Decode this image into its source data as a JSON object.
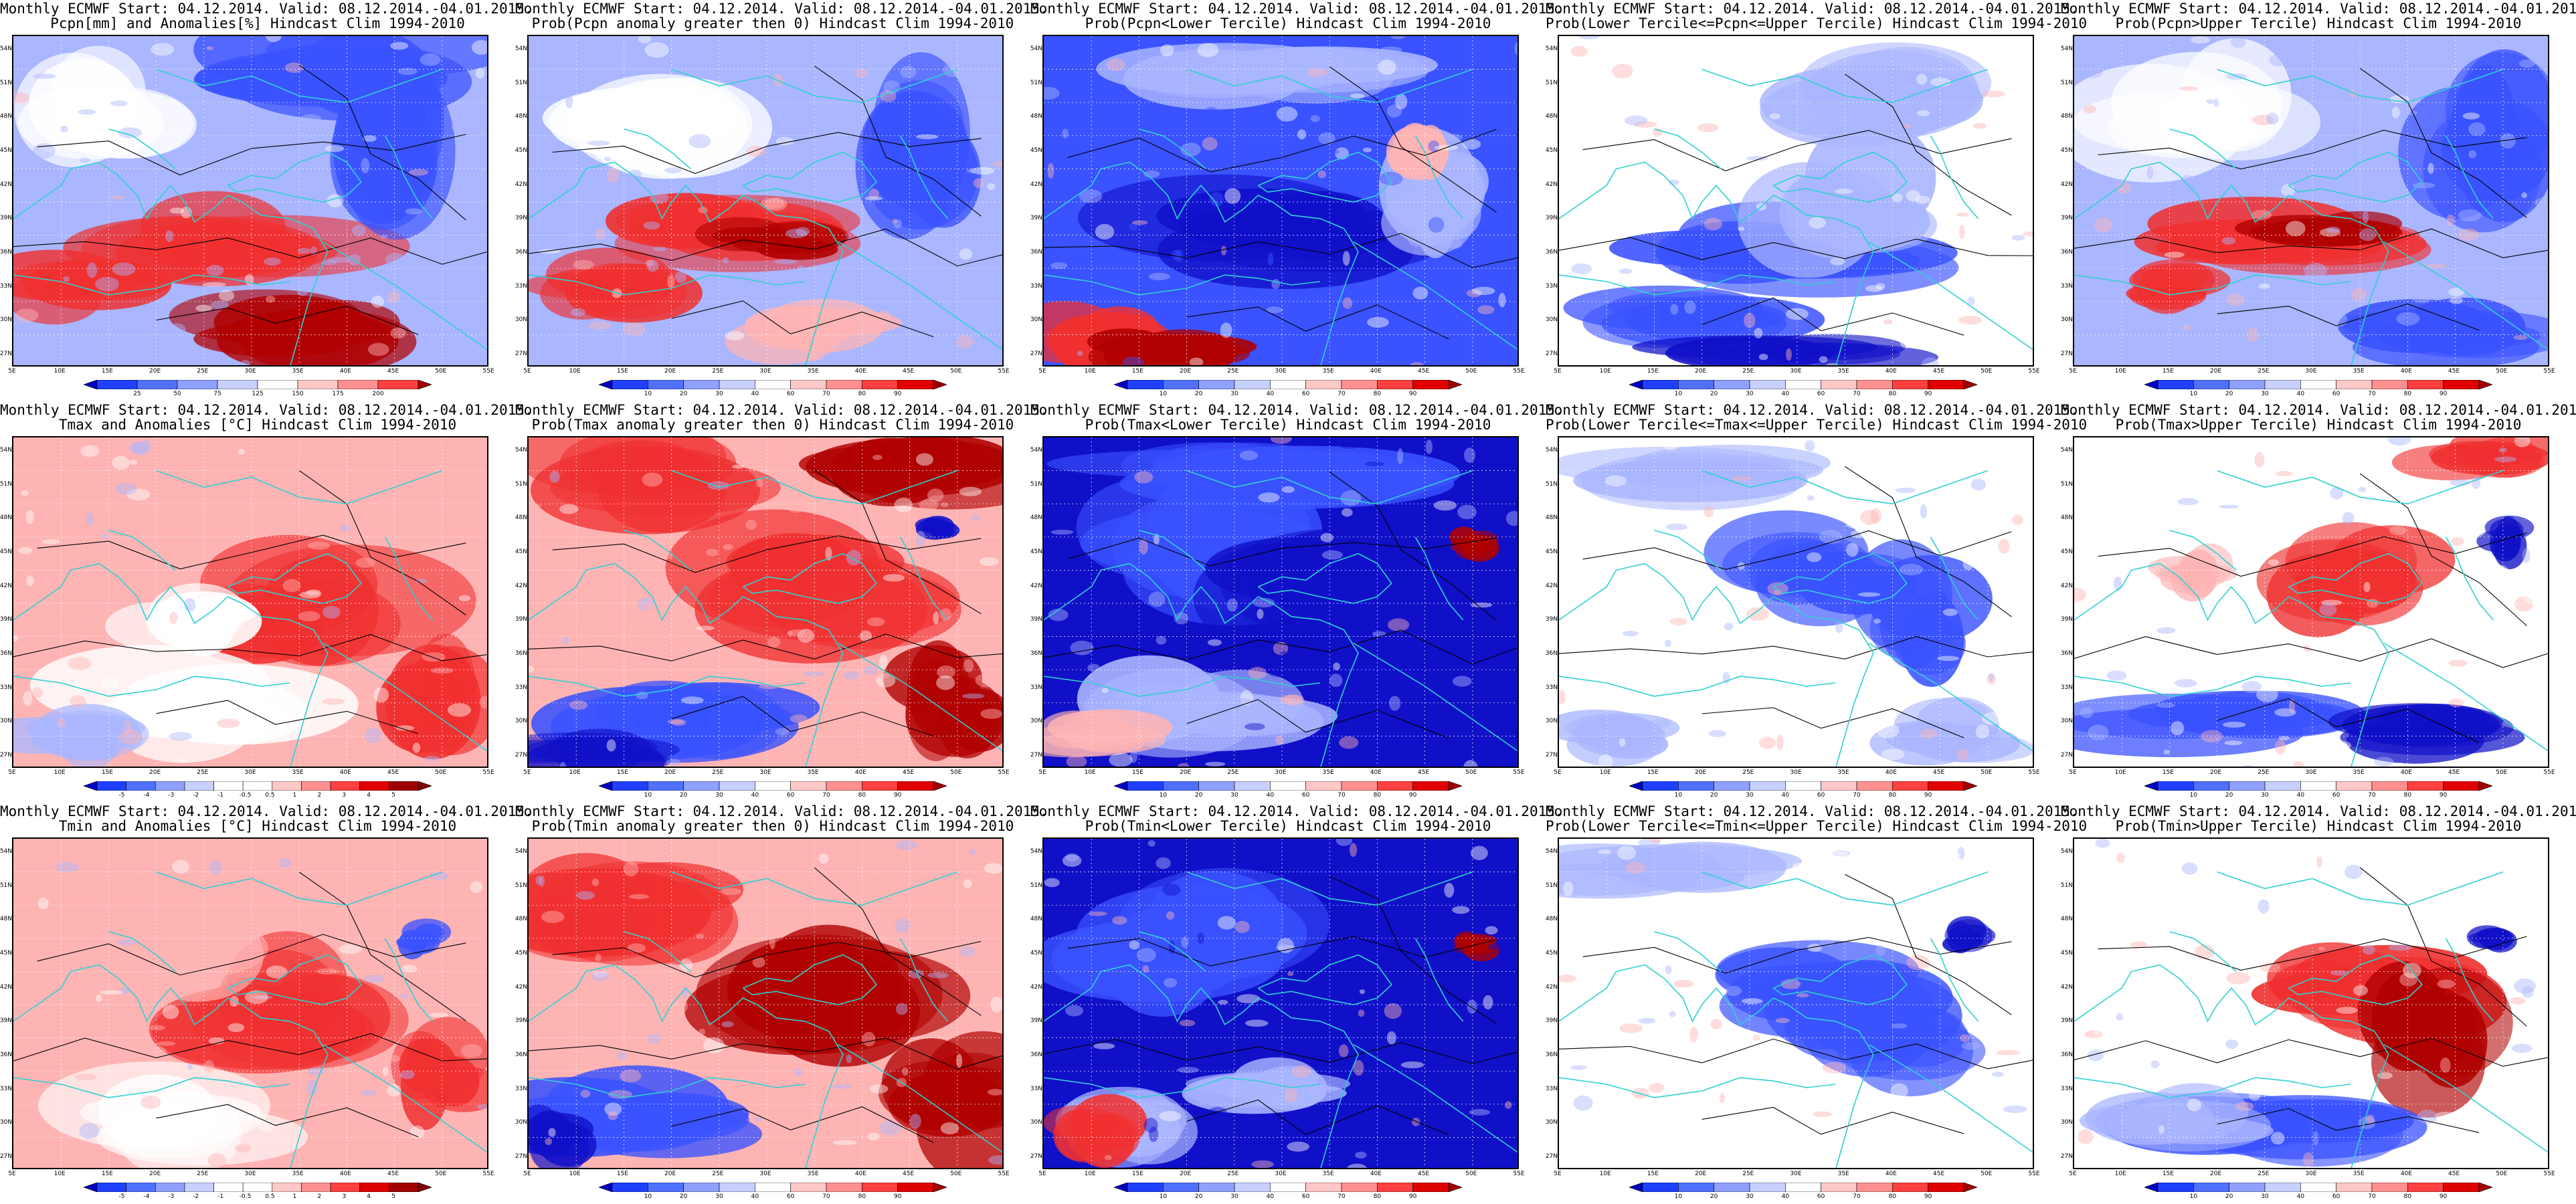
{
  "headline": "Monthly ECMWF Start: 04.12.2014. Valid: 08.12.2014.-04.01.2015.",
  "lat_labels": [
    "54N",
    "51N",
    "48N",
    "45N",
    "42N",
    "39N",
    "36N",
    "33N",
    "30N",
    "27N"
  ],
  "lon_labels": [
    "5E",
    "10E",
    "15E",
    "20E",
    "25E",
    "30E",
    "35E",
    "40E",
    "45E",
    "50E",
    "55E"
  ],
  "colorbars": {
    "pcpn": [
      "25",
      "50",
      "75",
      "125",
      "150",
      "175",
      "200"
    ],
    "prob": [
      "10",
      "20",
      "30",
      "40",
      "60",
      "70",
      "80",
      "90"
    ],
    "temp": [
      "-5",
      "-4",
      "-3",
      "-2",
      "-1",
      "-0.5",
      "0.5",
      "1",
      "2",
      "3",
      "4",
      "5"
    ]
  },
  "colors": {
    "deep_blue": "#1010c8",
    "blue": "#3a52ff",
    "light_blue": "#aab6ff",
    "white": "#ffffff",
    "light_red": "#ffb4b4",
    "red": "#f03030",
    "dark_red": "#b00000",
    "coast": "#30d0d0",
    "contour": "#000000"
  },
  "panels": [
    {
      "id": "p1",
      "row": 0,
      "col": 0,
      "subtitle": "Pcpn[mm] and Anomalies[%] Hindcast Clim 1994-2010",
      "scheme": "anom_pcpn",
      "bar": "pcpn"
    },
    {
      "id": "p2",
      "row": 0,
      "col": 1,
      "subtitle": "Prob(Pcpn anomaly greater then 0) Hindcast Clim 1994-2010",
      "scheme": "prob_pcpn_pos",
      "bar": "prob"
    },
    {
      "id": "p3",
      "row": 0,
      "col": 2,
      "subtitle": "Prob(Pcpn<Lower Tercile) Hindcast Clim 1994-2010",
      "scheme": "prob_pcpn_low",
      "bar": "prob"
    },
    {
      "id": "p4",
      "row": 0,
      "col": 3,
      "subtitle": "Prob(Lower Tercile<=Pcpn<=Upper Tercile) Hindcast Clim 1994-2010",
      "scheme": "prob_pcpn_mid",
      "bar": "prob"
    },
    {
      "id": "p5",
      "row": 0,
      "col": 4,
      "subtitle": "Prob(Pcpn>Upper Tercile) Hindcast Clim 1994-2010",
      "scheme": "prob_pcpn_up",
      "bar": "prob"
    },
    {
      "id": "p6",
      "row": 1,
      "col": 0,
      "subtitle": "Tmax and Anomalies [°C] Hindcast Clim 1994-2010",
      "scheme": "anom_tmax",
      "bar": "temp"
    },
    {
      "id": "p7",
      "row": 1,
      "col": 1,
      "subtitle": "Prob(Tmax anomaly greater then 0) Hindcast Clim 1994-2010",
      "scheme": "prob_tmax_pos",
      "bar": "prob"
    },
    {
      "id": "p8",
      "row": 1,
      "col": 2,
      "subtitle": "Prob(Tmax<Lower Tercile) Hindcast Clim 1994-2010",
      "scheme": "prob_tmax_low",
      "bar": "prob"
    },
    {
      "id": "p9",
      "row": 1,
      "col": 3,
      "subtitle": "Prob(Lower Tercile<=Tmax<=Upper Tercile) Hindcast Clim 1994-2010",
      "scheme": "prob_tmax_mid",
      "bar": "prob"
    },
    {
      "id": "p10",
      "row": 1,
      "col": 4,
      "subtitle": "Prob(Tmax>Upper Tercile) Hindcast Clim 1994-2010",
      "scheme": "prob_tmax_up",
      "bar": "prob"
    },
    {
      "id": "p11",
      "row": 2,
      "col": 0,
      "subtitle": "Tmin and Anomalies [°C] Hindcast Clim 1994-2010",
      "scheme": "anom_tmin",
      "bar": "temp"
    },
    {
      "id": "p12",
      "row": 2,
      "col": 1,
      "subtitle": "Prob(Tmin anomaly greater then 0) Hindcast Clim 1994-2010",
      "scheme": "prob_tmin_pos",
      "bar": "prob"
    },
    {
      "id": "p13",
      "row": 2,
      "col": 2,
      "subtitle": "Prob(Tmin<Lower Tercile) Hindcast Clim 1994-2010",
      "scheme": "prob_tmin_low",
      "bar": "prob"
    },
    {
      "id": "p14",
      "row": 2,
      "col": 3,
      "subtitle": "Prob(Lower Tercile<=Tmin<=Upper Tercile) Hindcast Clim 1994-2010",
      "scheme": "prob_tmin_mid",
      "bar": "prob"
    },
    {
      "id": "p15",
      "row": 2,
      "col": 4,
      "subtitle": "Prob(Tmin>Upper Tercile) Hindcast Clim 1994-2010",
      "scheme": "prob_tmin_up",
      "bar": "prob"
    }
  ]
}
